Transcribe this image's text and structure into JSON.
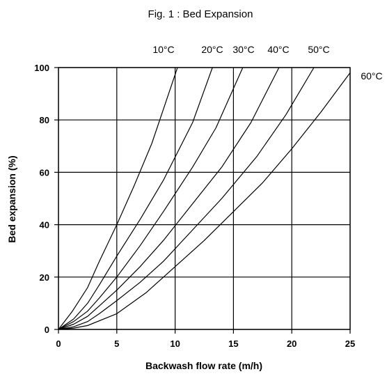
{
  "chart_data": {
    "type": "line",
    "title": "Fig. 1 : Bed Expansion",
    "xlabel": "Backwash flow rate (m/h)",
    "ylabel": "Bed expansion (%)",
    "xlim": [
      0,
      25
    ],
    "ylim": [
      0,
      100
    ],
    "xticks": [
      0,
      5,
      10,
      15,
      20,
      25
    ],
    "yticks": [
      0,
      20,
      40,
      60,
      80,
      100
    ],
    "grid": true,
    "line_color": "#000000",
    "series": [
      {
        "name": "10°C",
        "x": [
          0,
          1.2,
          2.5,
          3.5,
          5,
          6.5,
          8,
          10.2
        ],
        "y": [
          0,
          7,
          16,
          26,
          40,
          55,
          71,
          100
        ]
      },
      {
        "name": "20°C",
        "x": [
          0,
          1.3,
          2.5,
          3.5,
          5,
          7,
          9,
          11.5,
          13.2
        ],
        "y": [
          0,
          4,
          10,
          17,
          28,
          42,
          57,
          79,
          100
        ]
      },
      {
        "name": "30°C",
        "x": [
          0,
          1.3,
          2.5,
          3.5,
          5,
          7,
          9,
          11.5,
          13.5,
          15.8
        ],
        "y": [
          0,
          3,
          7,
          12,
          20,
          32,
          45,
          62,
          77,
          100
        ]
      },
      {
        "name": "40°C",
        "x": [
          0,
          1.3,
          2.5,
          3.5,
          5,
          7,
          9,
          11.5,
          14,
          16.5,
          18.9
        ],
        "y": [
          0,
          2,
          5,
          9,
          15,
          24,
          34,
          48,
          62,
          79,
          100
        ]
      },
      {
        "name": "50°C",
        "x": [
          0,
          1.3,
          2.5,
          3.5,
          5,
          7,
          9,
          11.5,
          14,
          17,
          19.5,
          21.9
        ],
        "y": [
          0,
          1,
          3,
          6,
          11,
          18,
          26,
          38,
          50,
          66,
          82,
          100
        ]
      },
      {
        "name": "60°C",
        "x": [
          0,
          1.3,
          2.5,
          5,
          7.5,
          10,
          12.5,
          15,
          17.5,
          20,
          22.5,
          25
        ],
        "y": [
          0,
          0.5,
          1.5,
          6,
          14,
          24,
          34,
          45,
          56,
          69,
          83,
          98
        ]
      }
    ]
  }
}
